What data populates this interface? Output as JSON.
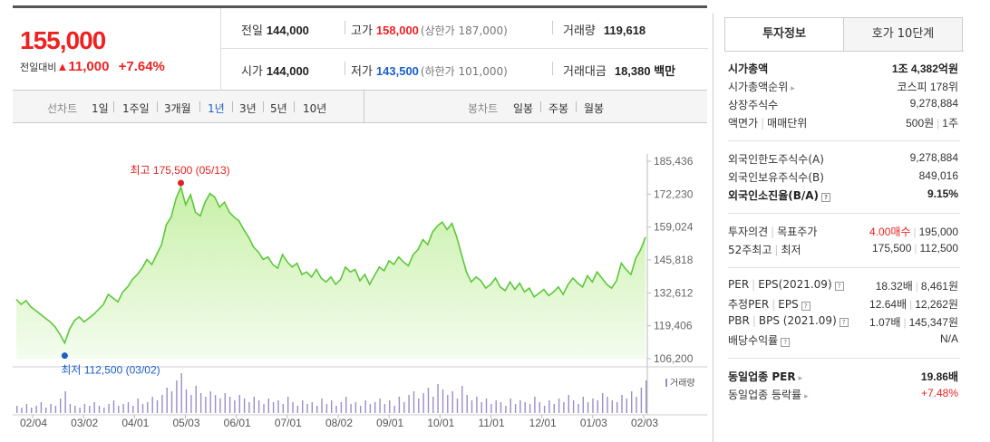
{
  "price": {
    "current": "155,000",
    "change_label": "전일대비",
    "change_arrow": "▲",
    "change_value": "11,000",
    "change_rate": "+7.64%"
  },
  "info": {
    "prev_close": {
      "label": "전일",
      "value": "144,000"
    },
    "high": {
      "label": "고가",
      "value": "158,000",
      "ref": "(상한가 187,000)"
    },
    "volume": {
      "label": "거래량",
      "value": "119,618"
    },
    "open": {
      "label": "시가",
      "value": "144,000"
    },
    "low": {
      "label": "저가",
      "value": "143,500",
      "ref": "(하한가 101,000)"
    },
    "amount": {
      "label": "거래대금",
      "value": "18,380 백만"
    }
  },
  "toolbar": {
    "line_label": "선차트",
    "periods": [
      "1일",
      "1주일",
      "3개월",
      "1년",
      "3년",
      "5년",
      "10년"
    ],
    "active_period": "1년",
    "candle_label": "봉차트",
    "candle_periods": [
      "일봉",
      "주봉",
      "월봉"
    ]
  },
  "chart_data": {
    "type": "area",
    "y_ticks": [
      "185,436",
      "172,230",
      "159,024",
      "145,818",
      "132,612",
      "119,406",
      "106,200"
    ],
    "ylim": [
      106200,
      185436
    ],
    "x_ticks": [
      "02/04",
      "03/02",
      "04/01",
      "05/03",
      "06/01",
      "07/01",
      "08/02",
      "09/01",
      "10/01",
      "11/01",
      "12/01",
      "01/03",
      "02/03"
    ],
    "high_label": "최고 175,500 (05/13)",
    "low_label": "최저 112,500 (03/02)",
    "volume_label": "거래량",
    "price_series": [
      130000,
      128000,
      129500,
      127000,
      125500,
      124000,
      122500,
      121000,
      119000,
      116000,
      112500,
      118000,
      121500,
      123000,
      121000,
      122500,
      124000,
      126000,
      128000,
      132000,
      130500,
      129000,
      133000,
      135000,
      138000,
      140000,
      142500,
      146000,
      144000,
      148000,
      152000,
      160000,
      163000,
      170500,
      175000,
      168000,
      172000,
      165000,
      163500,
      169000,
      172500,
      171000,
      167000,
      169000,
      165000,
      163000,
      161500,
      158000,
      155000,
      151000,
      149000,
      146000,
      147000,
      144000,
      142500,
      148000,
      145000,
      143000,
      144500,
      140000,
      141000,
      139000,
      142000,
      138500,
      137000,
      139000,
      136000,
      138000,
      143000,
      141000,
      142000,
      137500,
      140000,
      136000,
      139500,
      143000,
      141500,
      145500,
      144000,
      147000,
      145000,
      143500,
      148000,
      150000,
      154000,
      152000,
      157000,
      159500,
      161000,
      158000,
      160500,
      155000,
      148000,
      141000,
      137000,
      139000,
      137500,
      134500,
      136000,
      138500,
      135000,
      133500,
      137000,
      134000,
      136500,
      133000,
      134500,
      131000,
      132500,
      134000,
      131500,
      133000,
      135000,
      132000,
      136000,
      138500,
      136500,
      135000,
      139500,
      137000,
      141000,
      138500,
      136000,
      134500,
      137500,
      144500,
      142000,
      140000,
      146500,
      150000,
      155000
    ],
    "volume_series": [
      4,
      3,
      5,
      3,
      4,
      6,
      3,
      5,
      4,
      8,
      12,
      5,
      4,
      3,
      5,
      4,
      6,
      4,
      3,
      5,
      7,
      4,
      5,
      6,
      4,
      8,
      5,
      6,
      9,
      7,
      10,
      14,
      12,
      18,
      22,
      13,
      10,
      15,
      11,
      9,
      12,
      10,
      8,
      11,
      9,
      7,
      10,
      8,
      6,
      9,
      7,
      5,
      8,
      6,
      7,
      5,
      9,
      6,
      4,
      7,
      5,
      6,
      4,
      8,
      5,
      7,
      4,
      6,
      9,
      5,
      6,
      4,
      7,
      5,
      6,
      8,
      5,
      7,
      4,
      9,
      6,
      10,
      12,
      8,
      11,
      14,
      9,
      16,
      13,
      10,
      12,
      8,
      15,
      10,
      7,
      9,
      6,
      8,
      5,
      7,
      6,
      4,
      8,
      5,
      7,
      6,
      5,
      9,
      6,
      4,
      7,
      5,
      8,
      6,
      10,
      7,
      5,
      9,
      6,
      8,
      7,
      11,
      9,
      7,
      6,
      10,
      8,
      12,
      9,
      14,
      18
    ]
  },
  "side": {
    "tabs": [
      "투자정보",
      "호가 10단계"
    ],
    "rows": [
      {
        "k": "시가총액",
        "v": "1조 4,382억원"
      },
      {
        "k": "시가총액순위",
        "v": "코스피 178위"
      },
      {
        "k": "상장주식수",
        "v": "9,278,884"
      },
      {
        "k": "액면가",
        "k2": "매매단위",
        "v": "500원",
        "v2": "1주"
      },
      {
        "k": "외국인한도주식수(A)",
        "v": "9,278,884"
      },
      {
        "k": "외국인보유주식수(B)",
        "v": "849,016"
      },
      {
        "k": "외국인소진율(B/A)",
        "v": "9.15%"
      },
      {
        "k": "투자의견",
        "k2": "목표주가",
        "v": "4.00매수",
        "v2": "195,000"
      },
      {
        "k": "52주최고",
        "k2": "최저",
        "v": "175,500",
        "v2": "112,500"
      },
      {
        "k": "PER",
        "k2": "EPS(2021.09)",
        "v": "18.32배",
        "v2": "8,461원"
      },
      {
        "k": "추정PER",
        "k2": "EPS",
        "v": "12.64배",
        "v2": "12,262원"
      },
      {
        "k": "PBR",
        "k2": "BPS (2021.09)",
        "v": "1.07배",
        "v2": "145,347원"
      },
      {
        "k": "배당수익률",
        "v": "N/A"
      },
      {
        "k": "동일업종 PER",
        "v": "19.86배"
      },
      {
        "k": "동일업종 등락률",
        "v": "+7.48%"
      }
    ]
  },
  "colors": {
    "up": "#e22222",
    "down": "#1a5fc9",
    "line": "#5cc83a",
    "fill": "#e8f8d8",
    "volume": "#9b8cc8"
  }
}
